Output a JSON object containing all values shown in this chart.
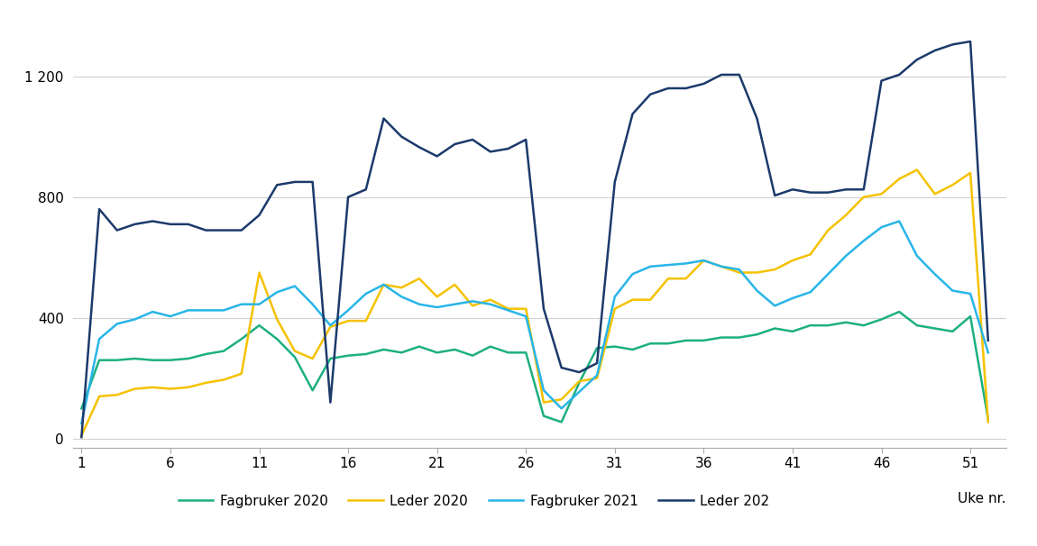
{
  "fagbruker_2020": [
    100,
    260,
    260,
    265,
    260,
    260,
    265,
    280,
    290,
    330,
    375,
    330,
    270,
    160,
    265,
    275,
    280,
    295,
    285,
    305,
    285,
    295,
    275,
    305,
    285,
    285,
    75,
    55,
    185,
    300,
    305,
    295,
    315,
    315,
    325,
    325,
    335,
    335,
    345,
    365,
    355,
    375,
    375,
    385,
    375,
    395,
    420,
    375,
    365,
    355,
    405,
    65
  ],
  "leder_2020": [
    10,
    140,
    145,
    165,
    170,
    165,
    170,
    185,
    195,
    215,
    550,
    395,
    290,
    265,
    370,
    390,
    390,
    510,
    500,
    530,
    470,
    510,
    440,
    460,
    430,
    430,
    120,
    130,
    190,
    200,
    430,
    460,
    460,
    530,
    530,
    590,
    570,
    550,
    550,
    560,
    590,
    610,
    690,
    740,
    800,
    810,
    860,
    890,
    810,
    840,
    880,
    55
  ],
  "fagbruker_2021": [
    50,
    330,
    380,
    395,
    420,
    405,
    425,
    425,
    425,
    445,
    445,
    485,
    505,
    445,
    375,
    425,
    480,
    510,
    470,
    445,
    435,
    445,
    455,
    445,
    425,
    405,
    160,
    100,
    155,
    210,
    470,
    545,
    570,
    575,
    580,
    590,
    570,
    560,
    490,
    440,
    465,
    485,
    545,
    605,
    655,
    700,
    720,
    605,
    545,
    490,
    480,
    285
  ],
  "leder_2021": [
    5,
    760,
    690,
    710,
    720,
    710,
    710,
    690,
    690,
    690,
    740,
    840,
    850,
    850,
    120,
    800,
    825,
    1060,
    1000,
    965,
    935,
    975,
    990,
    950,
    960,
    990,
    430,
    235,
    220,
    250,
    850,
    1075,
    1140,
    1160,
    1160,
    1175,
    1205,
    1205,
    1060,
    805,
    825,
    815,
    815,
    825,
    825,
    1185,
    1205,
    1255,
    1285,
    1305,
    1315,
    325
  ],
  "weeks": [
    1,
    2,
    3,
    4,
    5,
    6,
    7,
    8,
    9,
    10,
    11,
    12,
    13,
    14,
    15,
    16,
    17,
    18,
    19,
    20,
    21,
    22,
    23,
    24,
    25,
    26,
    27,
    28,
    29,
    30,
    31,
    32,
    33,
    34,
    35,
    36,
    37,
    38,
    39,
    40,
    41,
    42,
    43,
    44,
    45,
    46,
    47,
    48,
    49,
    50,
    51,
    52
  ],
  "x_ticks": [
    1,
    6,
    11,
    16,
    21,
    26,
    31,
    36,
    41,
    46,
    51
  ],
  "y_ticks": [
    0,
    400,
    800,
    1200
  ],
  "ylim": [
    -30,
    1380
  ],
  "xlim": [
    0.5,
    53
  ],
  "color_fagbruker_2020": "#1DAF82",
  "color_leder_2020": "#F5C200",
  "color_fagbruker_2021": "#29B5E8",
  "color_leder_2021": "#1B3A6B",
  "legend_labels": [
    "Fagbruker 2020",
    "Leder 2020",
    "Fagbruker 2021",
    "Leder 202"
  ],
  "xlabel": "Uke nr.",
  "linewidth": 1.8,
  "background_color": "#ffffff",
  "grid_color": "#d0d0d0"
}
